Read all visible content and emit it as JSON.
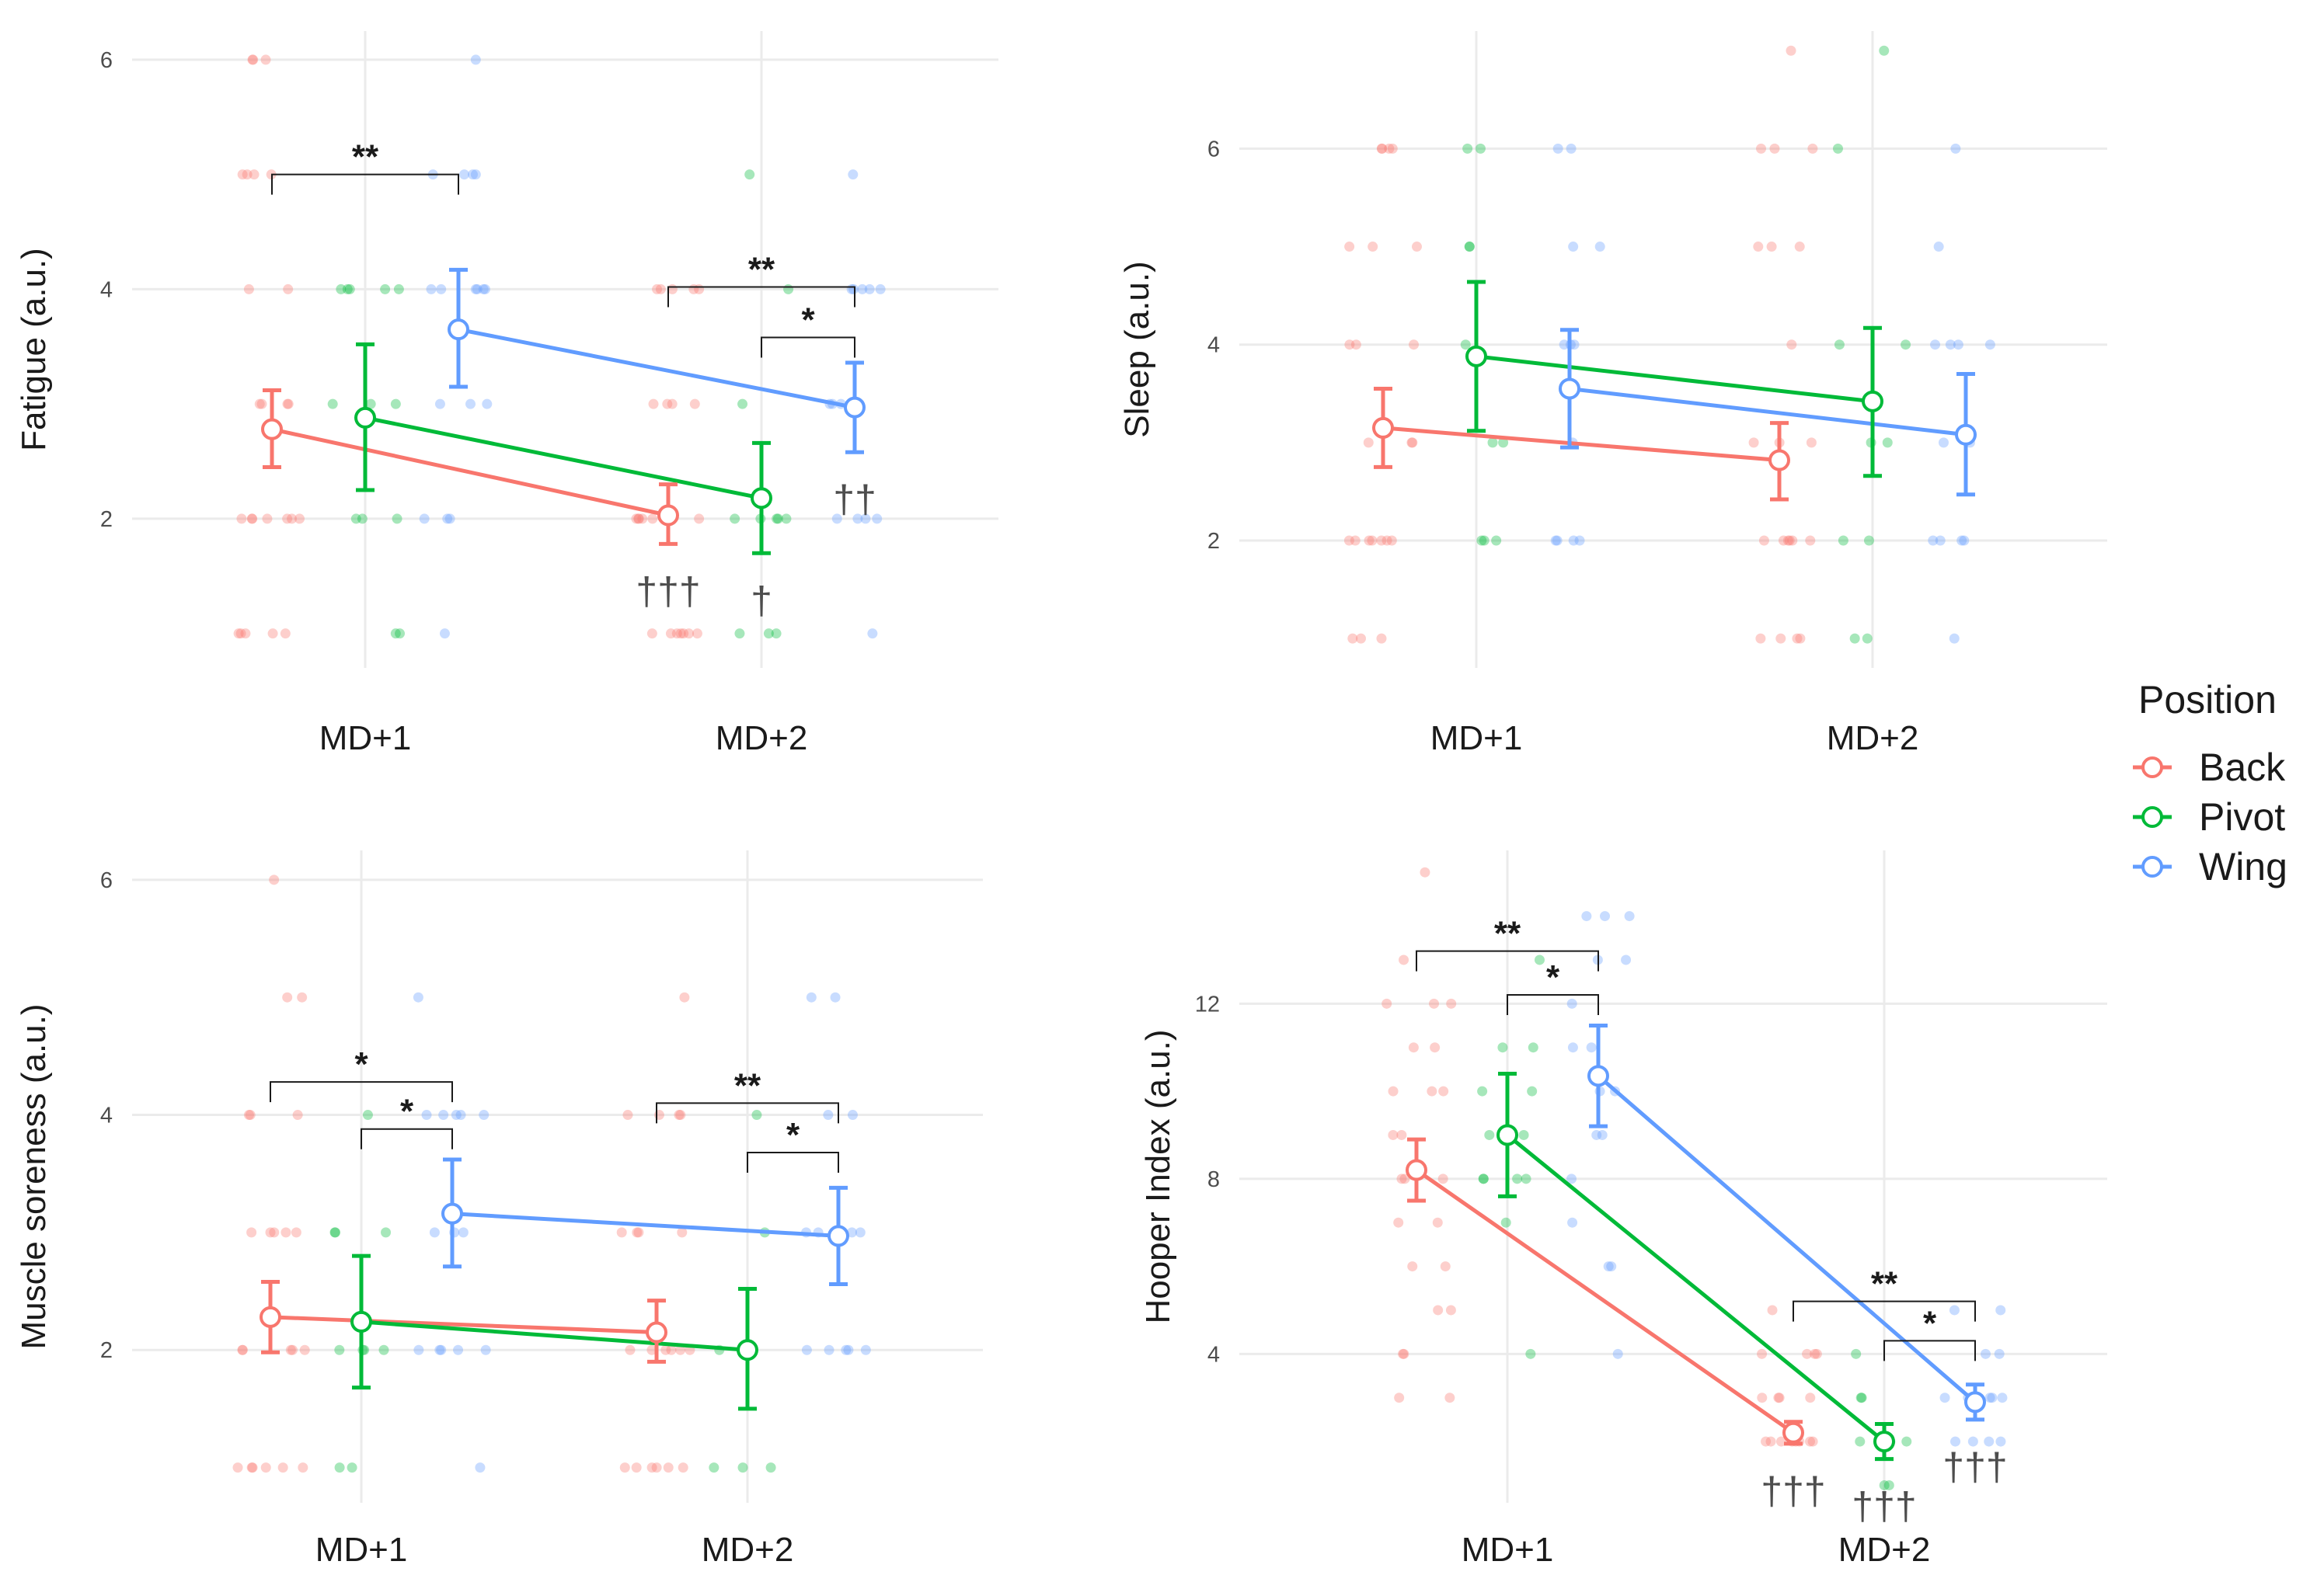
{
  "chart_data": [
    {
      "type": "line",
      "ylabel": "Fatigue (a.u.)",
      "categories": [
        "MD+1",
        "MD+2"
      ],
      "yticks": [
        2,
        4,
        6
      ],
      "ylim": [
        0.7,
        6.25
      ],
      "series": [
        {
          "name": "Back",
          "means": [
            2.78,
            2.03
          ],
          "ci": [
            [
              2.45,
              3.12
            ],
            [
              1.78,
              2.3
            ]
          ],
          "raw": [
            [
              6,
              6,
              6,
              5,
              5,
              5,
              5,
              4,
              4,
              3,
              3,
              3,
              3,
              2,
              2,
              2,
              2,
              2,
              2,
              2,
              1,
              1,
              1,
              1,
              1
            ],
            [
              4,
              4,
              4,
              4,
              4,
              3,
              3,
              3,
              3,
              2,
              2,
              2,
              2,
              2,
              2,
              1,
              1,
              1,
              1,
              1,
              1,
              1
            ]
          ]
        },
        {
          "name": "Pivot",
          "means": [
            2.88,
            2.18
          ],
          "ci": [
            [
              2.25,
              3.52
            ],
            [
              1.7,
              2.66
            ]
          ],
          "raw": [
            [
              4,
              4,
              4,
              4,
              4,
              3,
              3,
              3,
              2,
              2,
              2,
              1,
              1
            ],
            [
              5,
              4,
              3,
              2,
              2,
              2,
              2,
              2,
              1,
              1,
              1
            ]
          ]
        },
        {
          "name": "Wing",
          "means": [
            3.65,
            2.97
          ],
          "ci": [
            [
              3.15,
              4.17
            ],
            [
              2.58,
              3.36
            ]
          ],
          "raw": [
            [
              6,
              5,
              5,
              5,
              5,
              4,
              4,
              4,
              4,
              4,
              4,
              3,
              3,
              3,
              2,
              2,
              2,
              1
            ],
            [
              5,
              4,
              4,
              4,
              4,
              4,
              3,
              3,
              3,
              3,
              3,
              2,
              2,
              2,
              2,
              1
            ]
          ]
        }
      ],
      "brackets": [
        {
          "x1": 0,
          "s1": "Back",
          "x2": 0,
          "s2": "Wing",
          "y": 5.0,
          "label": "**"
        },
        {
          "x1": 1,
          "s1": "Back",
          "x2": 1,
          "s2": "Wing",
          "y": 4.02,
          "label": "**"
        },
        {
          "x1": 1,
          "s1": "Pivot",
          "x2": 1,
          "s2": "Wing",
          "y": 3.58,
          "label": "*"
        }
      ],
      "daggers": [
        {
          "x": 1,
          "series": "Back",
          "label": "†††"
        },
        {
          "x": 1,
          "series": "Pivot",
          "label": "†"
        },
        {
          "x": 1,
          "series": "Wing",
          "label": "††"
        }
      ]
    },
    {
      "type": "line",
      "ylabel": "Sleep (a.u.)",
      "categories": [
        "MD+1",
        "MD+2"
      ],
      "yticks": [
        2,
        4,
        6
      ],
      "ylim": [
        0.7,
        7.2
      ],
      "series": [
        {
          "name": "Back",
          "means": [
            3.15,
            2.82
          ],
          "ci": [
            [
              2.75,
              3.55
            ],
            [
              2.42,
              3.2
            ]
          ],
          "raw": [
            [
              6,
              6,
              6,
              6,
              5,
              5,
              5,
              4,
              4,
              4,
              3,
              3,
              3,
              2,
              2,
              2,
              2,
              2,
              2,
              2,
              1,
              1,
              1
            ],
            [
              7,
              6,
              6,
              6,
              5,
              5,
              5,
              4,
              3,
              3,
              3,
              2,
              2,
              2,
              2,
              2,
              2,
              1,
              1,
              1,
              1
            ]
          ]
        },
        {
          "name": "Pivot",
          "means": [
            3.88,
            3.42
          ],
          "ci": [
            [
              3.12,
              4.64
            ],
            [
              2.66,
              4.17
            ]
          ],
          "raw": [
            [
              6,
              6,
              5,
              5,
              4,
              3,
              3,
              2,
              2,
              2
            ],
            [
              7,
              6,
              4,
              4,
              3,
              3,
              2,
              2,
              1,
              1
            ]
          ]
        },
        {
          "name": "Wing",
          "means": [
            3.55,
            3.08
          ],
          "ci": [
            [
              2.95,
              4.15
            ],
            [
              2.47,
              3.7
            ]
          ],
          "raw": [
            [
              6,
              6,
              5,
              5,
              4,
              4,
              4,
              3,
              2,
              2,
              2,
              2
            ],
            [
              6,
              5,
              4,
              4,
              4,
              4,
              3,
              3,
              2,
              2,
              2,
              2,
              1
            ]
          ]
        }
      ],
      "brackets": [],
      "daggers": []
    },
    {
      "type": "line",
      "ylabel": "Muscle soreness (a.u.)",
      "categories": [
        "MD+1",
        "MD+2"
      ],
      "yticks": [
        2,
        4,
        6
      ],
      "ylim": [
        0.7,
        6.25
      ],
      "series": [
        {
          "name": "Back",
          "means": [
            2.28,
            2.15
          ],
          "ci": [
            [
              1.98,
              2.58
            ],
            [
              1.9,
              2.42
            ]
          ],
          "raw": [
            [
              6,
              5,
              5,
              4,
              4,
              4,
              3,
              3,
              3,
              3,
              3,
              2,
              2,
              2,
              2,
              2,
              1,
              1,
              1,
              1,
              1,
              1
            ],
            [
              5,
              4,
              4,
              4,
              4,
              3,
              3,
              3,
              3,
              2,
              2,
              2,
              2,
              2,
              2,
              1,
              1,
              1,
              1,
              1,
              1
            ]
          ]
        },
        {
          "name": "Pivot",
          "means": [
            2.24,
            2.0
          ],
          "ci": [
            [
              1.68,
              2.8
            ],
            [
              1.5,
              2.52
            ]
          ],
          "raw": [
            [
              4,
              3,
              3,
              3,
              2,
              2,
              2,
              2,
              1,
              1
            ],
            [
              4,
              3,
              2,
              2,
              2,
              1,
              1,
              1
            ]
          ]
        },
        {
          "name": "Wing",
          "means": [
            3.16,
            2.97
          ],
          "ci": [
            [
              2.71,
              3.62
            ],
            [
              2.56,
              3.38
            ]
          ],
          "raw": [
            [
              5,
              4,
              4,
              4,
              4,
              4,
              3,
              3,
              3,
              2,
              2,
              2,
              2,
              2,
              1
            ],
            [
              5,
              5,
              4,
              4,
              3,
              3,
              3,
              3,
              2,
              2,
              2,
              2,
              2
            ]
          ]
        }
      ],
      "brackets": [
        {
          "x1": 0,
          "s1": "Back",
          "x2": 0,
          "s2": "Wing",
          "y": 4.28,
          "label": "*"
        },
        {
          "x1": 0,
          "s1": "Pivot",
          "x2": 0,
          "s2": "Wing",
          "y": 3.88,
          "label": "*"
        },
        {
          "x1": 1,
          "s1": "Back",
          "x2": 1,
          "s2": "Wing",
          "y": 4.1,
          "label": "**"
        },
        {
          "x1": 1,
          "s1": "Pivot",
          "x2": 1,
          "s2": "Wing",
          "y": 3.68,
          "label": "*"
        }
      ],
      "daggers": []
    },
    {
      "type": "line",
      "ylabel": "Hooper Index (a.u.)",
      "categories": [
        "MD+1",
        "MD+2"
      ],
      "yticks": [
        4,
        8,
        12
      ],
      "ylim": [
        0.6,
        15.5
      ],
      "series": [
        {
          "name": "Back",
          "means": [
            8.2,
            2.2
          ],
          "ci": [
            [
              7.5,
              8.9
            ],
            [
              1.95,
              2.45
            ]
          ],
          "raw": [
            [
              15,
              13,
              12,
              12,
              12,
              11,
              11,
              10,
              10,
              10,
              9,
              9,
              8,
              8,
              8,
              7,
              7,
              6,
              6,
              5,
              5,
              4,
              4,
              3,
              3
            ],
            [
              5,
              4,
              4,
              4,
              4,
              3,
              3,
              3,
              3,
              2,
              2,
              2,
              2,
              2,
              2,
              2,
              2
            ]
          ]
        },
        {
          "name": "Pivot",
          "means": [
            9.0,
            2.0
          ],
          "ci": [
            [
              7.6,
              10.4
            ],
            [
              1.6,
              2.4
            ]
          ],
          "raw": [
            [
              13,
              11,
              11,
              10,
              10,
              9,
              9,
              8,
              8,
              8,
              8,
              7,
              4
            ],
            [
              4,
              3,
              3,
              2,
              2,
              2,
              2,
              2,
              1,
              1
            ]
          ]
        },
        {
          "name": "Wing",
          "means": [
            10.35,
            2.9
          ],
          "ci": [
            [
              9.2,
              11.5
            ],
            [
              2.5,
              3.3
            ]
          ],
          "raw": [
            [
              14,
              14,
              14,
              13,
              13,
              12,
              11,
              11,
              10,
              10,
              9,
              9,
              8,
              7,
              6,
              6,
              4
            ],
            [
              5,
              5,
              4,
              4,
              3,
              3,
              3,
              3,
              3,
              2,
              2,
              2,
              2
            ]
          ]
        }
      ],
      "brackets": [
        {
          "x1": 0,
          "s1": "Back",
          "x2": 0,
          "s2": "Wing",
          "y": 13.2,
          "label": "**"
        },
        {
          "x1": 0,
          "s1": "Pivot",
          "x2": 0,
          "s2": "Wing",
          "y": 12.2,
          "label": "*"
        },
        {
          "x1": 1,
          "s1": "Back",
          "x2": 1,
          "s2": "Wing",
          "y": 5.2,
          "label": "**"
        },
        {
          "x1": 1,
          "s1": "Pivot",
          "x2": 1,
          "s2": "Wing",
          "y": 4.3,
          "label": "*"
        }
      ],
      "daggers": [
        {
          "x": 1,
          "series": "Back",
          "label": "†††"
        },
        {
          "x": 1,
          "series": "Pivot",
          "label": "†††"
        },
        {
          "x": 1,
          "series": "Wing",
          "label": "†††"
        }
      ]
    }
  ],
  "legend": {
    "title": "Position",
    "items": [
      {
        "name": "Back",
        "color": "#F8766D"
      },
      {
        "name": "Pivot",
        "color": "#00BA38"
      },
      {
        "name": "Wing",
        "color": "#619CFF"
      }
    ]
  }
}
